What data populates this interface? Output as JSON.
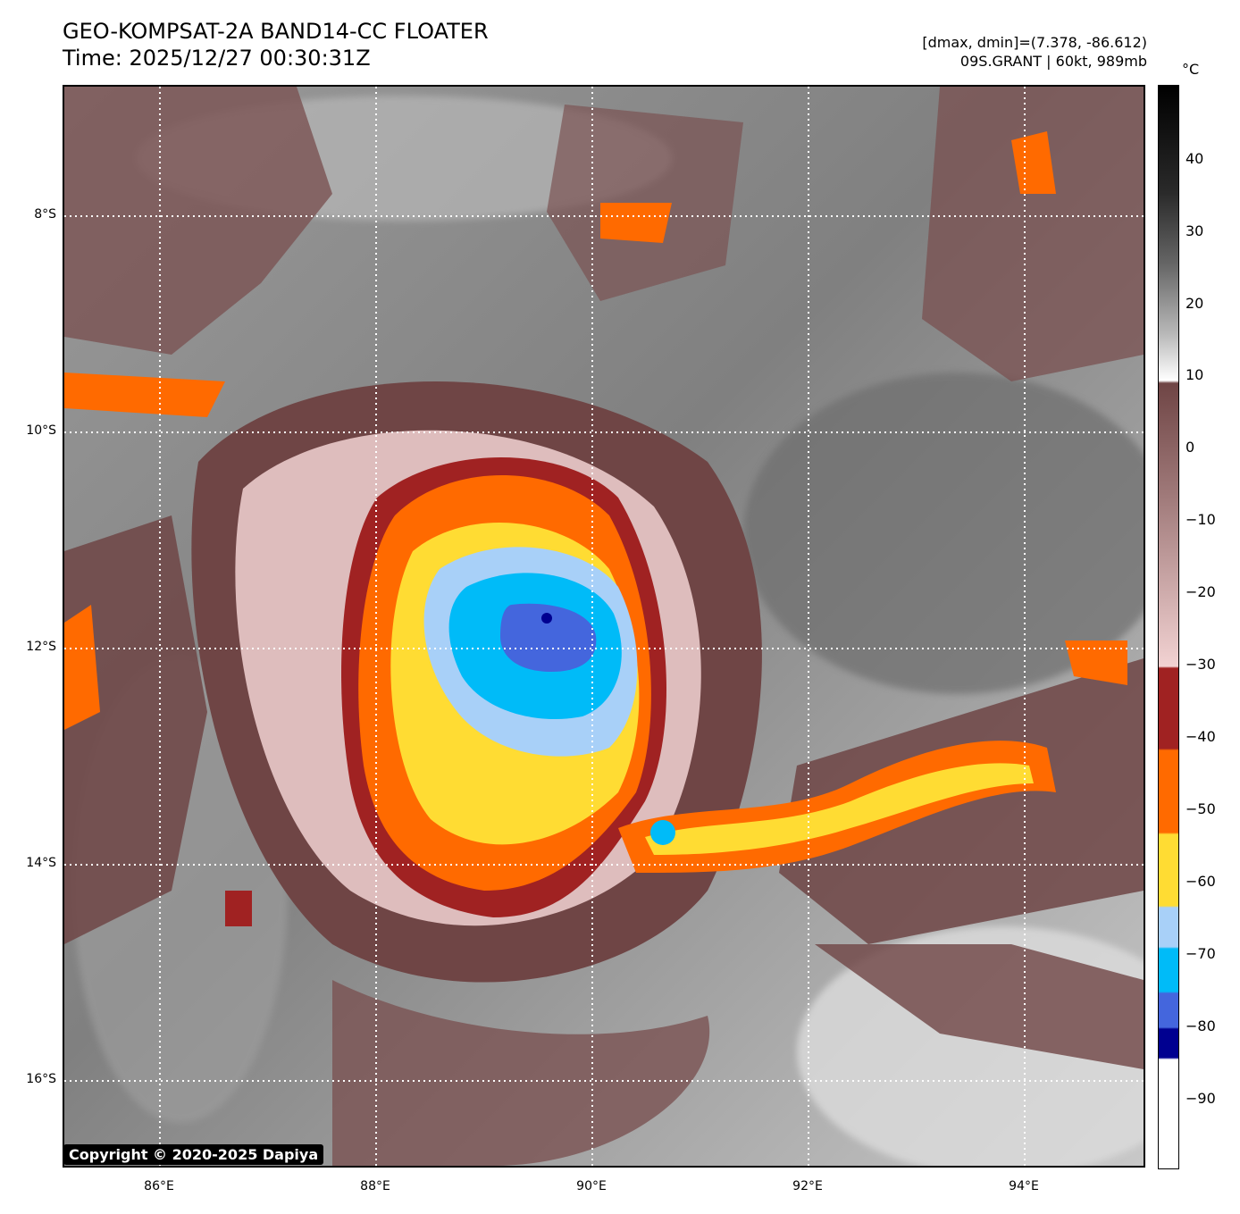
{
  "header": {
    "title_line1": "GEO-KOMPSAT-2A BAND14-CC FLOATER",
    "title_line2": "Time: 2025/12/27 00:30:31Z",
    "meta_line1": "[dmax, dmin]=(7.378, -86.612)",
    "meta_line2": "09S.GRANT | 60kt, 989mb"
  },
  "map": {
    "lat_labels": [
      "8°S",
      "10°S",
      "12°S",
      "14°S",
      "16°S"
    ],
    "lon_labels": [
      "86°E",
      "88°E",
      "90°E",
      "92°E",
      "94°E"
    ],
    "copyright": "Copyright © 2020-2025 Dapiya"
  },
  "colorbar": {
    "unit": "°C",
    "ticks": [
      "40",
      "30",
      "20",
      "10",
      "0",
      "−10",
      "−20",
      "−30",
      "−40",
      "−50",
      "−60",
      "−70",
      "−80",
      "−90"
    ],
    "colors": {
      "warm_top": "#000000",
      "warm_grey": "#ffffff",
      "brown": "#6f4545",
      "pink": "#f2d2d2",
      "dark_red": "#a02222",
      "orange": "#ff6a00",
      "yellow": "#ffdc33",
      "light_blue": "#a8d0f8",
      "cyan": "#00bbf8",
      "royal_blue": "#4466dd",
      "navy": "#000090",
      "white": "#ffffff"
    }
  }
}
